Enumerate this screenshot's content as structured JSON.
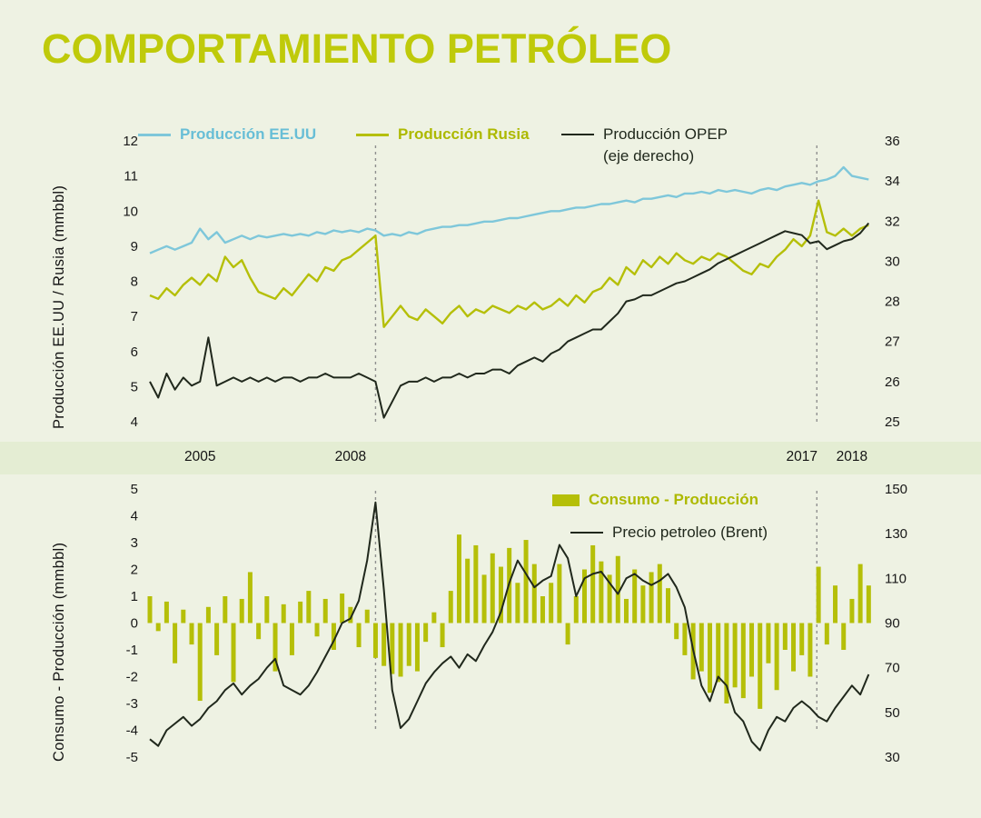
{
  "title": "COMPORTAMIENTO PETRÓLEO",
  "colors": {
    "background": "#eef2e3",
    "band": "#e4edd3",
    "title": "#bfca0a",
    "us": "#7ec7da",
    "russia": "#b5bf08",
    "opec": "#20281c",
    "bars": "#b5bf08",
    "brent": "#20281c",
    "vline": "#8f8f8f"
  },
  "chart_data": [
    {
      "type": "line",
      "title": "",
      "x_axis": {
        "min": 2004.0,
        "max": 2018.4,
        "start": 2004.0,
        "step": 0.16667,
        "count": 87,
        "labels": [
          2005,
          2008,
          2017,
          2018
        ]
      },
      "left_axis": {
        "label": "Producción EE.UU / Rusia (mmbbl)",
        "ticks": [
          12,
          11,
          10,
          9,
          8,
          7,
          6,
          5,
          4
        ]
      },
      "right_axis": {
        "label": "",
        "ticks": [
          36,
          34,
          32,
          30,
          28,
          27,
          26,
          25
        ]
      },
      "highlight_years": [
        2008.5,
        2017.3
      ],
      "grid": false,
      "legend": {
        "position": "top",
        "items": [
          {
            "label": "Producción EE.UU"
          },
          {
            "label": "Producción Rusia"
          },
          {
            "label": "Producción OPEP",
            "sublabel": "(eje derecho)"
          }
        ]
      },
      "series": [
        {
          "name": "Producción EE.UU",
          "axis": "left",
          "color_key": "us",
          "values": [
            8.8,
            8.9,
            9.0,
            8.9,
            9.0,
            9.1,
            9.5,
            9.2,
            9.4,
            9.1,
            9.2,
            9.3,
            9.2,
            9.3,
            9.25,
            9.3,
            9.35,
            9.3,
            9.35,
            9.3,
            9.4,
            9.35,
            9.45,
            9.4,
            9.45,
            9.4,
            9.5,
            9.45,
            9.3,
            9.35,
            9.3,
            9.4,
            9.35,
            9.45,
            9.5,
            9.55,
            9.55,
            9.6,
            9.6,
            9.65,
            9.7,
            9.7,
            9.75,
            9.8,
            9.8,
            9.85,
            9.9,
            9.95,
            10.0,
            10.0,
            10.05,
            10.1,
            10.1,
            10.15,
            10.2,
            10.2,
            10.25,
            10.3,
            10.25,
            10.35,
            10.35,
            10.4,
            10.45,
            10.4,
            10.5,
            10.5,
            10.55,
            10.5,
            10.6,
            10.55,
            10.6,
            10.55,
            10.5,
            10.6,
            10.65,
            10.6,
            10.7,
            10.75,
            10.8,
            10.75,
            10.85,
            10.9,
            11.0,
            11.25,
            11.0,
            10.95,
            10.9
          ]
        },
        {
          "name": "Producción Rusia",
          "axis": "left",
          "color_key": "russia",
          "values": [
            7.6,
            7.5,
            7.8,
            7.6,
            7.9,
            8.1,
            7.9,
            8.2,
            8.0,
            8.7,
            8.4,
            8.6,
            8.1,
            7.7,
            7.6,
            7.5,
            7.8,
            7.6,
            7.9,
            8.2,
            8.0,
            8.4,
            8.3,
            8.6,
            8.7,
            8.9,
            9.1,
            9.3,
            6.7,
            7.0,
            7.3,
            7.0,
            6.9,
            7.2,
            7.0,
            6.8,
            7.1,
            7.3,
            7.0,
            7.2,
            7.1,
            7.3,
            7.2,
            7.1,
            7.3,
            7.2,
            7.4,
            7.2,
            7.3,
            7.5,
            7.3,
            7.6,
            7.4,
            7.7,
            7.8,
            8.1,
            7.9,
            8.4,
            8.2,
            8.6,
            8.4,
            8.7,
            8.5,
            8.8,
            8.6,
            8.5,
            8.7,
            8.6,
            8.8,
            8.7,
            8.5,
            8.3,
            8.2,
            8.5,
            8.4,
            8.7,
            8.9,
            9.2,
            9.0,
            9.3,
            10.3,
            9.4,
            9.3,
            9.5,
            9.3,
            9.5,
            9.6
          ]
        },
        {
          "name": "Producción OPEP (eje derecho)",
          "axis": "right",
          "color_key": "opec",
          "values": [
            26.0,
            25.6,
            26.2,
            25.8,
            26.1,
            25.9,
            26.0,
            27.1,
            25.9,
            26.0,
            26.1,
            26.0,
            26.1,
            26.0,
            26.1,
            26.0,
            26.1,
            26.1,
            26.0,
            26.1,
            26.1,
            26.2,
            26.1,
            26.1,
            26.1,
            26.2,
            26.1,
            26.0,
            25.1,
            25.5,
            25.9,
            26.0,
            26.0,
            26.1,
            26.0,
            26.1,
            26.1,
            26.2,
            26.1,
            26.2,
            26.2,
            26.3,
            26.3,
            26.2,
            26.4,
            26.5,
            26.6,
            26.5,
            26.7,
            26.8,
            27.0,
            27.1,
            27.2,
            27.3,
            27.3,
            27.5,
            27.7,
            28.0,
            28.1,
            28.3,
            28.3,
            28.5,
            28.7,
            28.9,
            29.0,
            29.2,
            29.4,
            29.6,
            29.9,
            30.1,
            30.3,
            30.5,
            30.7,
            30.9,
            31.1,
            31.3,
            31.5,
            31.4,
            31.3,
            30.9,
            31.0,
            30.6,
            30.8,
            31.0,
            31.1,
            31.4,
            31.9
          ]
        }
      ]
    },
    {
      "type": "bar",
      "title": "",
      "x_axis": {
        "min": 2004.0,
        "max": 2018.4,
        "start": 2004.0,
        "step": 0.16667,
        "count": 87,
        "labels": []
      },
      "left_axis": {
        "label": "Consumo - Producción  (mmbbl)",
        "ticks": [
          5,
          4,
          3,
          2,
          1,
          0,
          -1,
          -2,
          -3,
          -4,
          -5
        ]
      },
      "right_axis": {
        "label": "",
        "ticks": [
          150,
          130,
          110,
          90,
          70,
          50,
          30
        ]
      },
      "highlight_years": [
        2008.5,
        2017.3
      ],
      "grid": false,
      "legend": {
        "position": "inside-top",
        "items": [
          {
            "label": "Consumo - Producción"
          },
          {
            "label": "Precio petroleo (Brent)"
          }
        ]
      },
      "series": [
        {
          "name": "Consumo - Producción",
          "type": "bar",
          "axis": "left",
          "color_key": "bars",
          "values": [
            1.0,
            -0.3,
            0.8,
            -1.5,
            0.5,
            -0.8,
            -2.9,
            0.6,
            -1.2,
            1.0,
            -2.2,
            0.9,
            1.9,
            -0.6,
            1.0,
            -1.8,
            0.7,
            -1.2,
            0.8,
            1.2,
            -0.5,
            0.9,
            -1.0,
            1.1,
            0.6,
            -0.9,
            0.5,
            -1.3,
            -1.6,
            -1.9,
            -2.0,
            -1.6,
            -1.8,
            -0.7,
            0.4,
            -0.9,
            1.2,
            3.3,
            2.4,
            2.9,
            1.8,
            2.6,
            2.1,
            2.8,
            1.5,
            3.1,
            2.2,
            1.0,
            1.5,
            2.2,
            -0.8,
            1.0,
            2.0,
            2.9,
            2.3,
            1.8,
            2.5,
            0.9,
            2.0,
            1.4,
            1.9,
            2.2,
            1.3,
            -0.6,
            -1.2,
            -2.1,
            -1.8,
            -2.6,
            -2.2,
            -3.0,
            -2.4,
            -2.8,
            -2.0,
            -3.2,
            -1.5,
            -2.5,
            -1.0,
            -1.8,
            -1.2,
            -2.0,
            2.1,
            -0.8,
            1.4,
            -1.0,
            0.9,
            2.2,
            1.4
          ]
        },
        {
          "name": "Precio petroleo (Brent)",
          "type": "line",
          "axis": "right",
          "color_key": "brent",
          "values": [
            38,
            35,
            42,
            45,
            48,
            44,
            47,
            52,
            55,
            60,
            63,
            58,
            62,
            65,
            70,
            74,
            62,
            60,
            58,
            62,
            68,
            75,
            82,
            90,
            92,
            100,
            118,
            144,
            105,
            60,
            43,
            47,
            55,
            63,
            68,
            72,
            75,
            70,
            76,
            73,
            80,
            86,
            95,
            108,
            118,
            112,
            106,
            109,
            111,
            125,
            119,
            102,
            110,
            112,
            113,
            108,
            103,
            110,
            112,
            109,
            107,
            109,
            112,
            106,
            97,
            78,
            62,
            55,
            66,
            62,
            50,
            46,
            37,
            33,
            42,
            48,
            46,
            52,
            55,
            52,
            48,
            46,
            52,
            57,
            62,
            58,
            67
          ]
        }
      ]
    }
  ]
}
